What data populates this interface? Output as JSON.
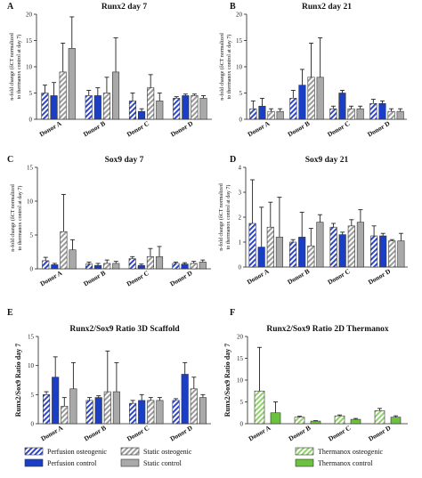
{
  "colors": {
    "perfusion_osteogenic": "#2f47c8",
    "perfusion_control": "#1a3fc4",
    "static_osteogenic": "#9a9a9a",
    "static_control": "#a9a9a9",
    "thermanox_osteogenic": "#92cf6e",
    "thermanox_control": "#6cc23f",
    "axis": "#222222"
  },
  "legends": [
    {
      "items": [
        {
          "label": "Perfusion osteogenic",
          "color": "#2f47c8",
          "pattern": "hatch"
        },
        {
          "label": "Static osteogenic",
          "color": "#9a9a9a",
          "pattern": "hatch"
        },
        {
          "label": "Perfusion control",
          "color": "#1a3fc4",
          "pattern": "solid"
        },
        {
          "label": "Static control",
          "color": "#a9a9a9",
          "pattern": "solid"
        }
      ]
    },
    {
      "items": [
        {
          "label": "Thermanox osteogenic",
          "color": "#92cf6e",
          "pattern": "hatch"
        },
        {
          "label": "Thermanox control",
          "color": "#6cc23f",
          "pattern": "solid"
        }
      ]
    }
  ],
  "chart_data": [
    {
      "panel": "A",
      "type": "bar",
      "title": "Runx2 day 7",
      "ylabel": "n-fold change (δCT normalized to thermanox control at day 7)",
      "ylim": [
        0,
        20
      ],
      "yticks": [
        0,
        5,
        10,
        15,
        20
      ],
      "categories": [
        "Donor A",
        "Donor B",
        "Donor C",
        "Donor D"
      ],
      "series": [
        {
          "name": "Perfusion osteogenic",
          "values": [
            5,
            4.5,
            3.5,
            4
          ],
          "errors": [
            1.5,
            1,
            1.5,
            0.3
          ]
        },
        {
          "name": "Perfusion control",
          "values": [
            4.5,
            4.5,
            1.5,
            4.5
          ],
          "errors": [
            2.5,
            1.5,
            0.5,
            0.3
          ]
        },
        {
          "name": "Static osteogenic",
          "values": [
            9,
            5,
            6,
            4.5
          ],
          "errors": [
            5.5,
            3,
            2.5,
            0.3
          ]
        },
        {
          "name": "Static control",
          "values": [
            13.5,
            9,
            3.5,
            4
          ],
          "errors": [
            6,
            6.5,
            1.5,
            0.5
          ]
        }
      ]
    },
    {
      "panel": "B",
      "type": "bar",
      "title": "Runx2 day 21",
      "ylabel": "n-fold change (δCT normalized to thermanox control at day 7)",
      "ylim": [
        0,
        20
      ],
      "yticks": [
        0,
        5,
        10,
        15,
        20
      ],
      "categories": [
        "Donor A",
        "Donor B",
        "Donor C",
        "Donor D"
      ],
      "series": [
        {
          "name": "Perfusion osteogenic",
          "values": [
            2,
            4,
            2,
            3
          ],
          "errors": [
            1.5,
            1.5,
            0.5,
            0.8
          ]
        },
        {
          "name": "Perfusion control",
          "values": [
            2.5,
            6.5,
            5,
            3
          ],
          "errors": [
            1.5,
            3,
            0.5,
            0.5
          ]
        },
        {
          "name": "Static osteogenic",
          "values": [
            1.5,
            8,
            2,
            1.5
          ],
          "errors": [
            0.5,
            6.5,
            0.5,
            0.5
          ]
        },
        {
          "name": "Static control",
          "values": [
            1.5,
            8,
            2,
            1.5
          ],
          "errors": [
            0.5,
            7.5,
            0.5,
            0.5
          ]
        }
      ]
    },
    {
      "panel": "C",
      "type": "bar",
      "title": "Sox9 day 7",
      "ylabel": "n-fold change (δCT normalized to thermanox control at day 7)",
      "ylim": [
        0,
        15
      ],
      "yticks": [
        0,
        5,
        10,
        15
      ],
      "categories": [
        "Donor A",
        "Donor B",
        "Donor C",
        "Donor D"
      ],
      "series": [
        {
          "name": "Perfusion osteogenic",
          "values": [
            1.2,
            0.7,
            1.5,
            0.8
          ],
          "errors": [
            0.5,
            0.3,
            0.3,
            0.2
          ]
        },
        {
          "name": "Perfusion control",
          "values": [
            0.6,
            0.5,
            0.5,
            0.7
          ],
          "errors": [
            0.2,
            0.3,
            0.2,
            0.2
          ]
        },
        {
          "name": "Static osteogenic",
          "values": [
            5.5,
            0.8,
            1.8,
            0.8
          ],
          "errors": [
            5.5,
            0.5,
            1.2,
            0.3
          ]
        },
        {
          "name": "Static control",
          "values": [
            2.8,
            0.8,
            1.8,
            1
          ],
          "errors": [
            1.5,
            0.3,
            1.5,
            0.3
          ]
        }
      ]
    },
    {
      "panel": "D",
      "type": "bar",
      "title": "Sox9 day 21",
      "ylabel": "n-fold change (δCT normalized to thermanox control at day 7)",
      "ylim": [
        0,
        4
      ],
      "yticks": [
        0,
        1,
        2,
        3,
        4
      ],
      "categories": [
        "Donor A",
        "Donor B",
        "Donor C",
        "Donor D"
      ],
      "series": [
        {
          "name": "Perfusion osteogenic",
          "values": [
            1.75,
            1,
            1.6,
            1.25
          ],
          "errors": [
            1.75,
            0.1,
            0.15,
            0.4
          ]
        },
        {
          "name": "Perfusion control",
          "values": [
            0.8,
            1.2,
            1.3,
            1.25
          ],
          "errors": [
            1.6,
            1,
            0.1,
            0.1
          ]
        },
        {
          "name": "Static osteogenic",
          "values": [
            1.6,
            0.85,
            1.65,
            1.05
          ],
          "errors": [
            1,
            0.7,
            0.25,
            0.05
          ]
        },
        {
          "name": "Static control",
          "values": [
            1.2,
            1.8,
            1.8,
            1.05
          ],
          "errors": [
            1.6,
            0.3,
            0.5,
            0.3
          ]
        }
      ]
    },
    {
      "panel": "E",
      "type": "bar",
      "title": "Runx2/Sox9 Ratio 3D Scaffold",
      "ylabel": "Runx2/Sox9 Ratio day 7",
      "ylim": [
        0,
        15
      ],
      "yticks": [
        0,
        5,
        10,
        15
      ],
      "categories": [
        "Donor A",
        "Donor B",
        "Donor C",
        "Donor D"
      ],
      "series": [
        {
          "name": "Perfusion osteogenic",
          "values": [
            5,
            4,
            3.5,
            4
          ],
          "errors": [
            0.5,
            0.5,
            0.5,
            0.3
          ]
        },
        {
          "name": "Perfusion control",
          "values": [
            8,
            4.5,
            4,
            8.5
          ],
          "errors": [
            3.5,
            0.3,
            1,
            2
          ]
        },
        {
          "name": "Static osteogenic",
          "values": [
            3,
            5.5,
            4,
            6
          ],
          "errors": [
            1.5,
            7,
            0.5,
            2
          ]
        },
        {
          "name": "Static control",
          "values": [
            6,
            5.5,
            4,
            4.5
          ],
          "errors": [
            4.5,
            5,
            0.5,
            0.5
          ]
        }
      ]
    },
    {
      "panel": "F",
      "type": "bar",
      "title": "Runx2/Sox9 Ratio 2D Thermanox",
      "ylabel": "Runx2/Sox9 Ratio day 7",
      "ylim": [
        0,
        20
      ],
      "yticks": [
        0,
        5,
        10,
        15,
        20
      ],
      "categories": [
        "Donor A",
        "Donor B",
        "Donor C",
        "Donor D"
      ],
      "series": [
        {
          "name": "Thermanox osteogenic",
          "values": [
            7.5,
            1.5,
            1.8,
            3
          ],
          "errors": [
            10,
            0.2,
            0.2,
            0.5
          ]
        },
        {
          "name": "Thermanox control",
          "values": [
            2.5,
            0.6,
            1,
            1.5
          ],
          "errors": [
            2.5,
            0.1,
            0.2,
            0.3
          ]
        }
      ]
    }
  ]
}
